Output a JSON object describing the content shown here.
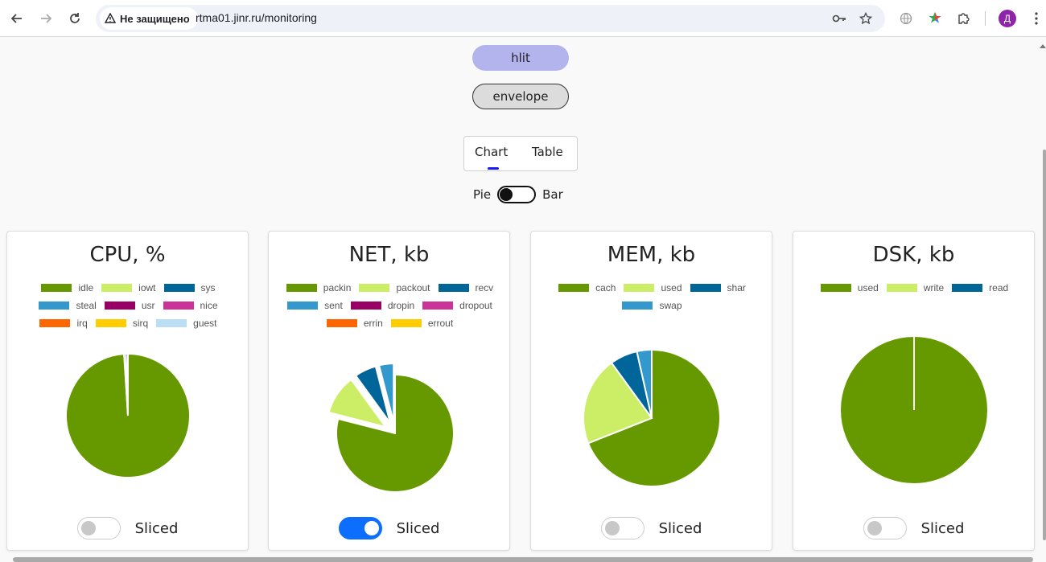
{
  "browser": {
    "security_label": "Не защищено",
    "url": "rtma01.jinr.ru/monitoring",
    "profile_initial": "Д",
    "icons": [
      "back-icon",
      "forward-icon",
      "reload-icon",
      "warning-icon",
      "key-icon",
      "star-icon",
      "globe-icon",
      "extension-icon",
      "puzzle-icon",
      "menu-icon"
    ]
  },
  "buttons": {
    "hlit": "hlit",
    "envelope": "envelope"
  },
  "tabs": {
    "chart": "Chart",
    "table": "Table",
    "active": "Chart"
  },
  "chart_toggle": {
    "left_label": "Pie",
    "right_label": "Bar",
    "state": "Pie"
  },
  "sliced_label": "Sliced",
  "colors": {
    "c1": "#669900",
    "c2": "#ccee66",
    "c3": "#006699",
    "c4": "#3399cc",
    "c5": "#990066",
    "c6": "#cc3399",
    "c7": "#ff6600",
    "c8": "#ffcc00",
    "c9": "#bbdef5"
  },
  "chart_data": [
    {
      "type": "pie",
      "title": "CPU, %",
      "sliced": false,
      "series": [
        {
          "name": "idle",
          "value": 99,
          "color": "#669900"
        },
        {
          "name": "iowt",
          "value": 0,
          "color": "#ccee66"
        },
        {
          "name": "sys",
          "value": 0.5,
          "color": "#006699"
        },
        {
          "name": "steal",
          "value": 0,
          "color": "#3399cc"
        },
        {
          "name": "usr",
          "value": 0.5,
          "color": "#990066"
        },
        {
          "name": "nice",
          "value": 0,
          "color": "#cc3399"
        },
        {
          "name": "irq",
          "value": 0,
          "color": "#ff6600"
        },
        {
          "name": "sirq",
          "value": 0,
          "color": "#ffcc00"
        },
        {
          "name": "guest",
          "value": 0,
          "color": "#bbdef5"
        }
      ]
    },
    {
      "type": "pie",
      "title": "NET, kb",
      "sliced": true,
      "series": [
        {
          "name": "packin",
          "value": 79,
          "color": "#669900"
        },
        {
          "name": "packout",
          "value": 11,
          "color": "#ccee66"
        },
        {
          "name": "recv",
          "value": 6,
          "color": "#006699"
        },
        {
          "name": "sent",
          "value": 4,
          "color": "#3399cc"
        },
        {
          "name": "dropin",
          "value": 0,
          "color": "#990066"
        },
        {
          "name": "dropout",
          "value": 0,
          "color": "#cc3399"
        },
        {
          "name": "errin",
          "value": 0,
          "color": "#ff6600"
        },
        {
          "name": "errout",
          "value": 0,
          "color": "#ffcc00"
        }
      ]
    },
    {
      "type": "pie",
      "title": "MEM, kb",
      "sliced": false,
      "series": [
        {
          "name": "cach",
          "value": 69,
          "color": "#669900"
        },
        {
          "name": "used",
          "value": 21,
          "color": "#ccee66"
        },
        {
          "name": "shar",
          "value": 6.5,
          "color": "#006699"
        },
        {
          "name": "swap",
          "value": 3.5,
          "color": "#3399cc"
        }
      ]
    },
    {
      "type": "pie",
      "title": "DSK, kb",
      "sliced": false,
      "series": [
        {
          "name": "used",
          "value": 100,
          "color": "#669900"
        },
        {
          "name": "write",
          "value": 0,
          "color": "#ccee66"
        },
        {
          "name": "read",
          "value": 0,
          "color": "#006699"
        }
      ]
    }
  ]
}
